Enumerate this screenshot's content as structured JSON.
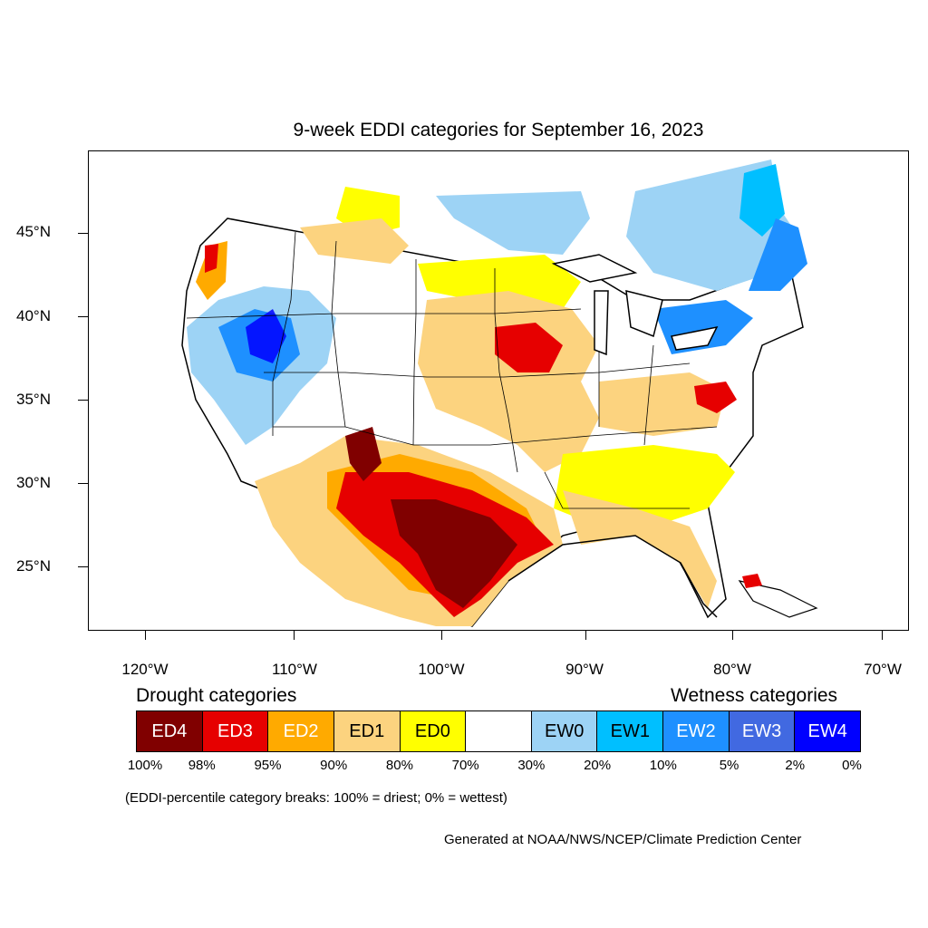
{
  "title": "9-week EDDI categories for September 16, 2023",
  "lat_labels": [
    "45°N",
    "40°N",
    "35°N",
    "30°N",
    "25°N"
  ],
  "lon_labels": [
    "120°W",
    "110°W",
    "100°W",
    "90°W",
    "80°W",
    "70°W"
  ],
  "legend": {
    "drought_title": "Drought categories",
    "wetness_title": "Wetness categories",
    "categories": [
      {
        "label": "ED4",
        "color": "#800000",
        "text_color": "#ffffff"
      },
      {
        "label": "ED3",
        "color": "#e60000",
        "text_color": "#ffffff"
      },
      {
        "label": "ED2",
        "color": "#ffaa00",
        "text_color": "#ffffff"
      },
      {
        "label": "ED1",
        "color": "#fcd37f",
        "text_color": "#000000"
      },
      {
        "label": "ED0",
        "color": "#ffff00",
        "text_color": "#000000"
      },
      {
        "label": "",
        "color": "#ffffff",
        "text_color": "#000000"
      },
      {
        "label": "EW0",
        "color": "#9dd3f5",
        "text_color": "#000000"
      },
      {
        "label": "EW1",
        "color": "#00bfff",
        "text_color": "#000000"
      },
      {
        "label": "EW2",
        "color": "#1e90ff",
        "text_color": "#ffffff"
      },
      {
        "label": "EW3",
        "color": "#4169e1",
        "text_color": "#ffffff"
      },
      {
        "label": "EW4",
        "color": "#0000ff",
        "text_color": "#ffffff"
      }
    ],
    "percentiles": [
      "100%",
      "98%",
      "95%",
      "90%",
      "80%",
      "70%",
      "30%",
      "20%",
      "10%",
      "5%",
      "2%",
      "0%"
    ]
  },
  "note": "(EDDI-percentile category breaks: 100% = driest; 0% = wettest)",
  "credit": "Generated at NOAA/NWS/NCEP/Climate Prediction Center"
}
